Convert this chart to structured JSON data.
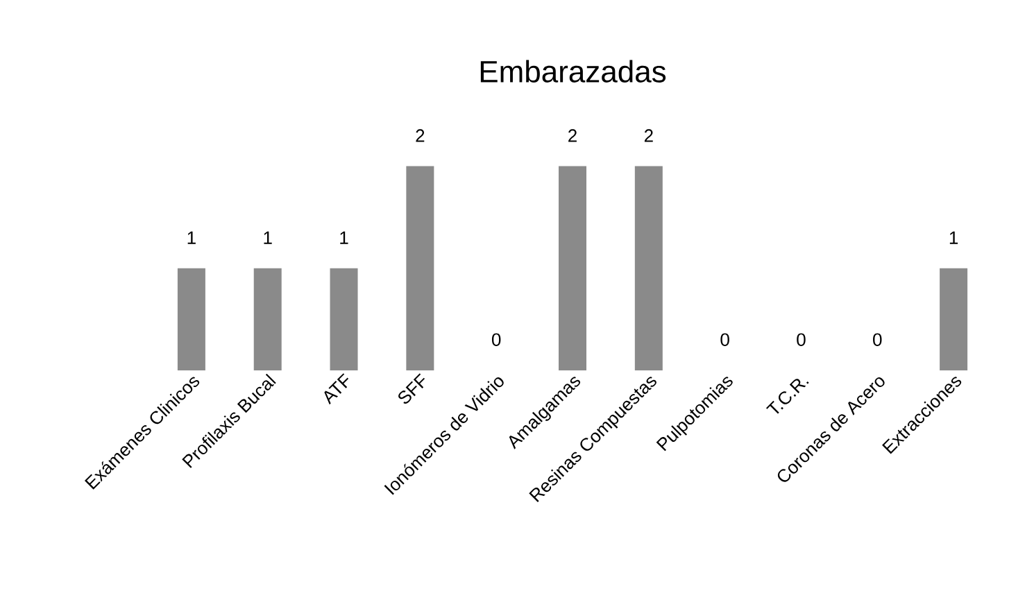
{
  "chart_data": {
    "type": "bar",
    "title": "Embarazadas",
    "categories": [
      "Exámenes Clinicos",
      "Profilaxis Bucal",
      "ATF",
      "SFF",
      "Ionómeros de Vidrio",
      "Amalgamas",
      "Resinas Compuestas",
      "Pulpotomias",
      "T.C.R.",
      "Coronas de Acero",
      "Extracciones"
    ],
    "values": [
      1,
      1,
      1,
      2,
      0,
      2,
      2,
      0,
      0,
      0,
      1
    ],
    "color": "#8a8a8a",
    "data_labels": true
  }
}
